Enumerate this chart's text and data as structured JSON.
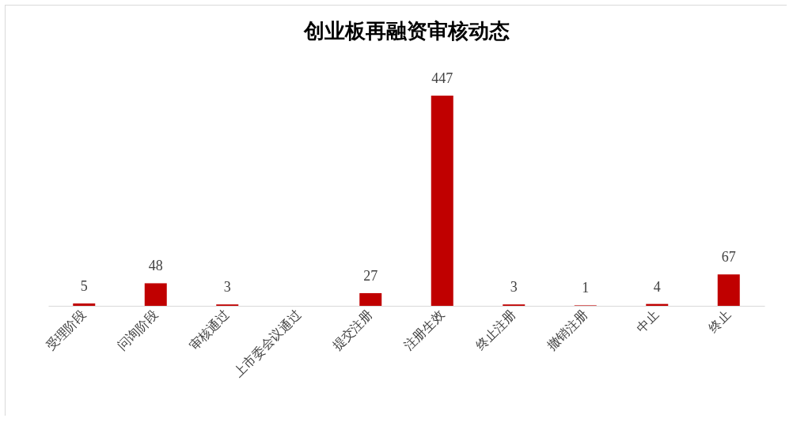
{
  "chart_data": {
    "type": "bar",
    "title": "创业板再融资审核动态",
    "categories": [
      "受理阶段",
      "问询阶段",
      "审核通过",
      "上市委会议通过",
      "提交注册",
      "注册生效",
      "终止注册",
      "撤销注册",
      "中止",
      "终止"
    ],
    "values": [
      5,
      48,
      3,
      null,
      27,
      447,
      3,
      1,
      4,
      67
    ],
    "color": "#c00000",
    "data_labels": true,
    "tick_labels": "x",
    "grid": false
  }
}
